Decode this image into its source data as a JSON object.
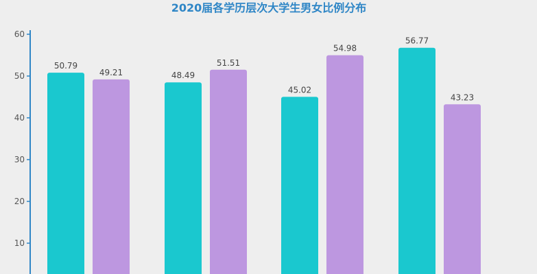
{
  "chart_data": {
    "type": "bar",
    "title": "2020届各学历层次大学生男女比例分布",
    "categories": [
      "",
      "",
      "",
      ""
    ],
    "series": [
      {
        "values": [
          50.79,
          48.49,
          45.02,
          56.77
        ]
      },
      {
        "values": [
          49.21,
          51.51,
          54.98,
          43.23
        ]
      }
    ],
    "data_labels": [
      [
        "50.79",
        "48.49",
        "45.02",
        "56.77"
      ],
      [
        "49.21",
        "51.51",
        "54.98",
        "43.23"
      ]
    ],
    "y_ticks": [
      "10",
      "20",
      "30",
      "40",
      "50",
      "60"
    ],
    "ylim": [
      0,
      60
    ],
    "grid": false,
    "colors": {
      "series_1": "#1ac8cf",
      "series_2": "#bd97e0",
      "title": "#2f86c6",
      "axis": "#2f86c6",
      "background": "#eeeeee"
    }
  }
}
